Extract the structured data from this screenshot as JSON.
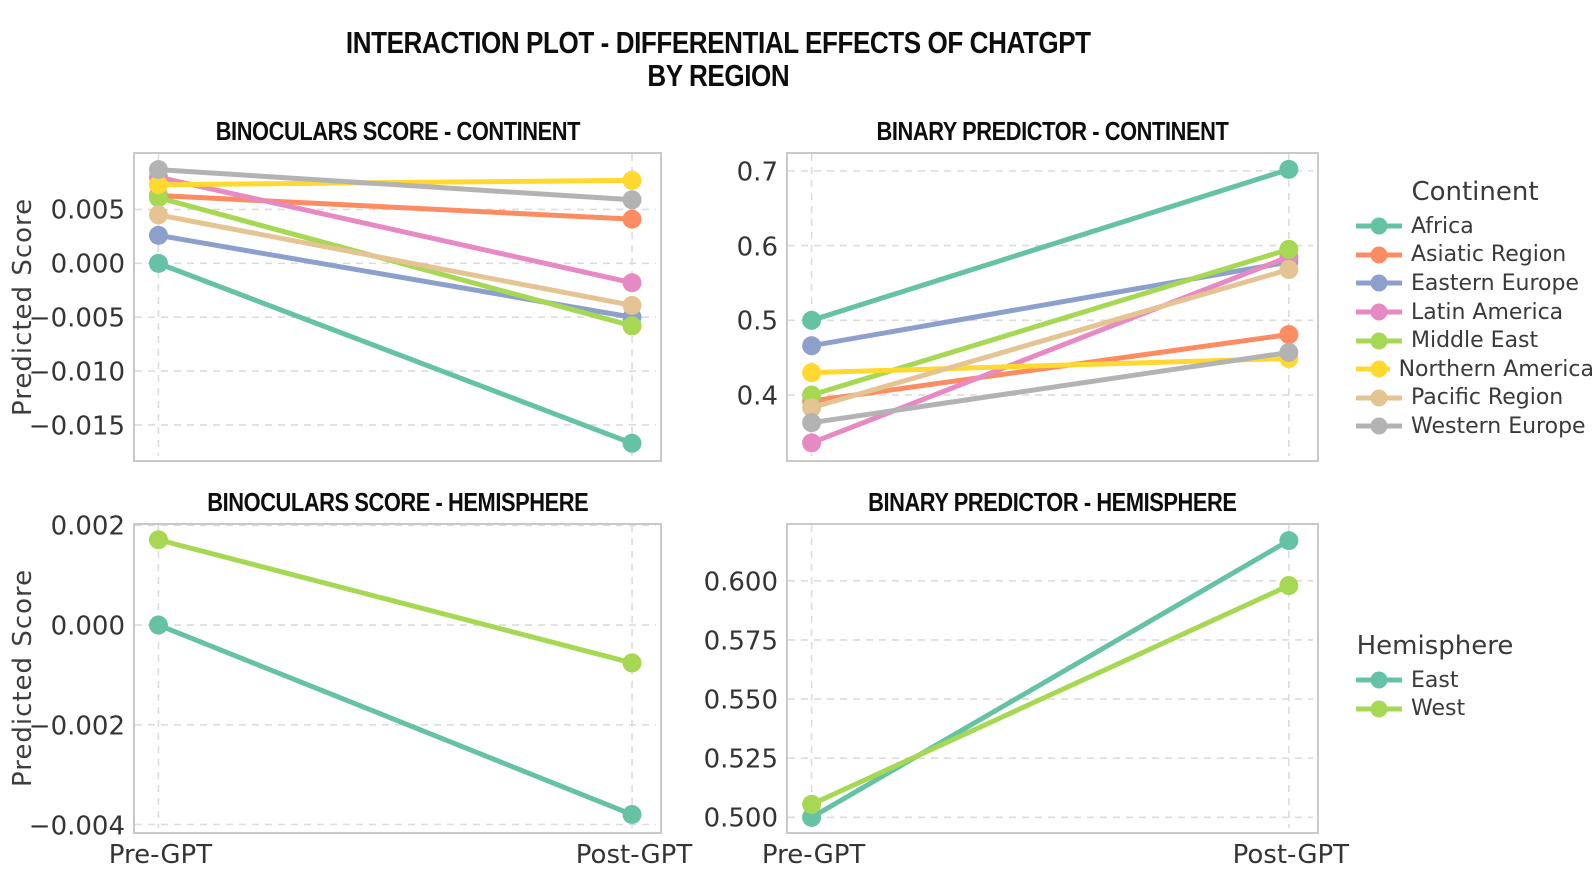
{
  "page_title": {
    "line1": "INTERACTION PLOT - DIFFERENTIAL EFFECTS OF CHATGPT",
    "line2": "BY REGION"
  },
  "x_axis": {
    "categories": [
      "Pre-GPT",
      "Post-GPT"
    ]
  },
  "chart_data": [
    {
      "type": "line",
      "title": "BINOCULARS SCORE - CONTINENT",
      "ylabel": "Predicted Score",
      "x": [
        "Pre-GPT",
        "Post-GPT"
      ],
      "show_x_tick_labels": false,
      "grid": true,
      "ytick_labels": [
        "0.005",
        "0.000",
        "−0.005",
        "−0.010",
        "−0.015"
      ],
      "ytick_values": [
        0.005,
        0.0,
        -0.005,
        -0.01,
        -0.015
      ],
      "ylim": [
        -0.01788,
        0.01015
      ],
      "series": [
        {
          "name": "Africa",
          "color": "#66c2a5",
          "values": [
            0.0,
            -0.0167
          ]
        },
        {
          "name": "Asiatic Region",
          "color": "#fc8d62",
          "values": [
            0.0063,
            0.0041
          ]
        },
        {
          "name": "Eastern Europe",
          "color": "#8da0cb",
          "values": [
            0.0026,
            -0.005
          ]
        },
        {
          "name": "Latin America",
          "color": "#e78ac3",
          "values": [
            0.008,
            -0.0018
          ]
        },
        {
          "name": "Middle East",
          "color": "#a6d854",
          "values": [
            0.0061,
            -0.0058
          ]
        },
        {
          "name": "Northern America",
          "color": "#ffd92f",
          "values": [
            0.0073,
            0.0077
          ]
        },
        {
          "name": "Pacific Region",
          "color": "#e5c494",
          "values": [
            0.0045,
            -0.0039
          ]
        },
        {
          "name": "Western Europe",
          "color": "#b3b3b3",
          "values": [
            0.0087,
            0.0059
          ]
        }
      ]
    },
    {
      "type": "line",
      "title": "BINARY PREDICTOR - CONTINENT",
      "x": [
        "Pre-GPT",
        "Post-GPT"
      ],
      "show_x_tick_labels": false,
      "grid": true,
      "ytick_labels": [
        "0.7",
        "0.6",
        "0.5",
        "0.4"
      ],
      "ytick_values": [
        0.7,
        0.6,
        0.5,
        0.4
      ],
      "ylim": [
        0.3184,
        0.7226
      ],
      "series": [
        {
          "name": "Africa",
          "color": "#66c2a5",
          "values": [
            0.5,
            0.702
          ]
        },
        {
          "name": "Asiatic Region",
          "color": "#fc8d62",
          "values": [
            0.392,
            0.481
          ]
        },
        {
          "name": "Eastern Europe",
          "color": "#8da0cb",
          "values": [
            0.466,
            0.578
          ]
        },
        {
          "name": "Latin America",
          "color": "#e78ac3",
          "values": [
            0.336,
            0.585
          ]
        },
        {
          "name": "Middle East",
          "color": "#a6d854",
          "values": [
            0.4,
            0.595
          ]
        },
        {
          "name": "Northern America",
          "color": "#ffd92f",
          "values": [
            0.43,
            0.449
          ]
        },
        {
          "name": "Pacific Region",
          "color": "#e5c494",
          "values": [
            0.383,
            0.568
          ]
        },
        {
          "name": "Western Europe",
          "color": "#b3b3b3",
          "values": [
            0.363,
            0.457
          ]
        }
      ]
    },
    {
      "type": "line",
      "title": "BINOCULARS SCORE - HEMISPHERE",
      "ylabel": "Predicted Score",
      "x": [
        "Pre-GPT",
        "Post-GPT"
      ],
      "show_x_tick_labels": true,
      "grid": true,
      "ytick_labels": [
        "0.002",
        "0.000",
        "−0.002",
        "−0.004"
      ],
      "ytick_values": [
        0.002,
        0.0,
        -0.002,
        -0.004
      ],
      "ylim": [
        -0.00407,
        0.002006
      ],
      "series": [
        {
          "name": "East",
          "color": "#66c2a5",
          "values": [
            0.0,
            -0.0038
          ]
        },
        {
          "name": "West",
          "color": "#a6d854",
          "values": [
            0.00171,
            -0.00076
          ]
        }
      ]
    },
    {
      "type": "line",
      "title": "BINARY PREDICTOR - HEMISPHERE",
      "x": [
        "Pre-GPT",
        "Post-GPT"
      ],
      "show_x_tick_labels": true,
      "grid": true,
      "ytick_labels": [
        "0.600",
        "0.575",
        "0.550",
        "0.525",
        "0.500"
      ],
      "ytick_values": [
        0.6,
        0.575,
        0.55,
        0.525,
        0.5
      ],
      "ylim": [
        0.4955,
        0.6236
      ],
      "series": [
        {
          "name": "East",
          "color": "#66c2a5",
          "values": [
            0.5,
            0.617
          ]
        },
        {
          "name": "West",
          "color": "#a6d854",
          "values": [
            0.5055,
            0.598
          ]
        }
      ]
    }
  ],
  "legends": [
    {
      "title": "Continent",
      "items": [
        {
          "label": "Africa",
          "color": "#66c2a5"
        },
        {
          "label": "Asiatic Region",
          "color": "#fc8d62"
        },
        {
          "label": "Eastern Europe",
          "color": "#8da0cb"
        },
        {
          "label": "Latin America",
          "color": "#e78ac3"
        },
        {
          "label": "Middle East",
          "color": "#a6d854"
        },
        {
          "label": "Northern America",
          "color": "#ffd92f"
        },
        {
          "label": "Pacific Region",
          "color": "#e5c494"
        },
        {
          "label": "Western Europe",
          "color": "#b3b3b3"
        }
      ]
    },
    {
      "title": "Hemisphere",
      "items": [
        {
          "label": "East",
          "color": "#66c2a5"
        },
        {
          "label": "West",
          "color": "#a6d854"
        }
      ]
    }
  ],
  "style": {
    "grid_color": "#dcdcdc",
    "panel_border_color": "#c9c9c9",
    "title_color": "#0d0d0d",
    "tick_color": "#343434"
  }
}
